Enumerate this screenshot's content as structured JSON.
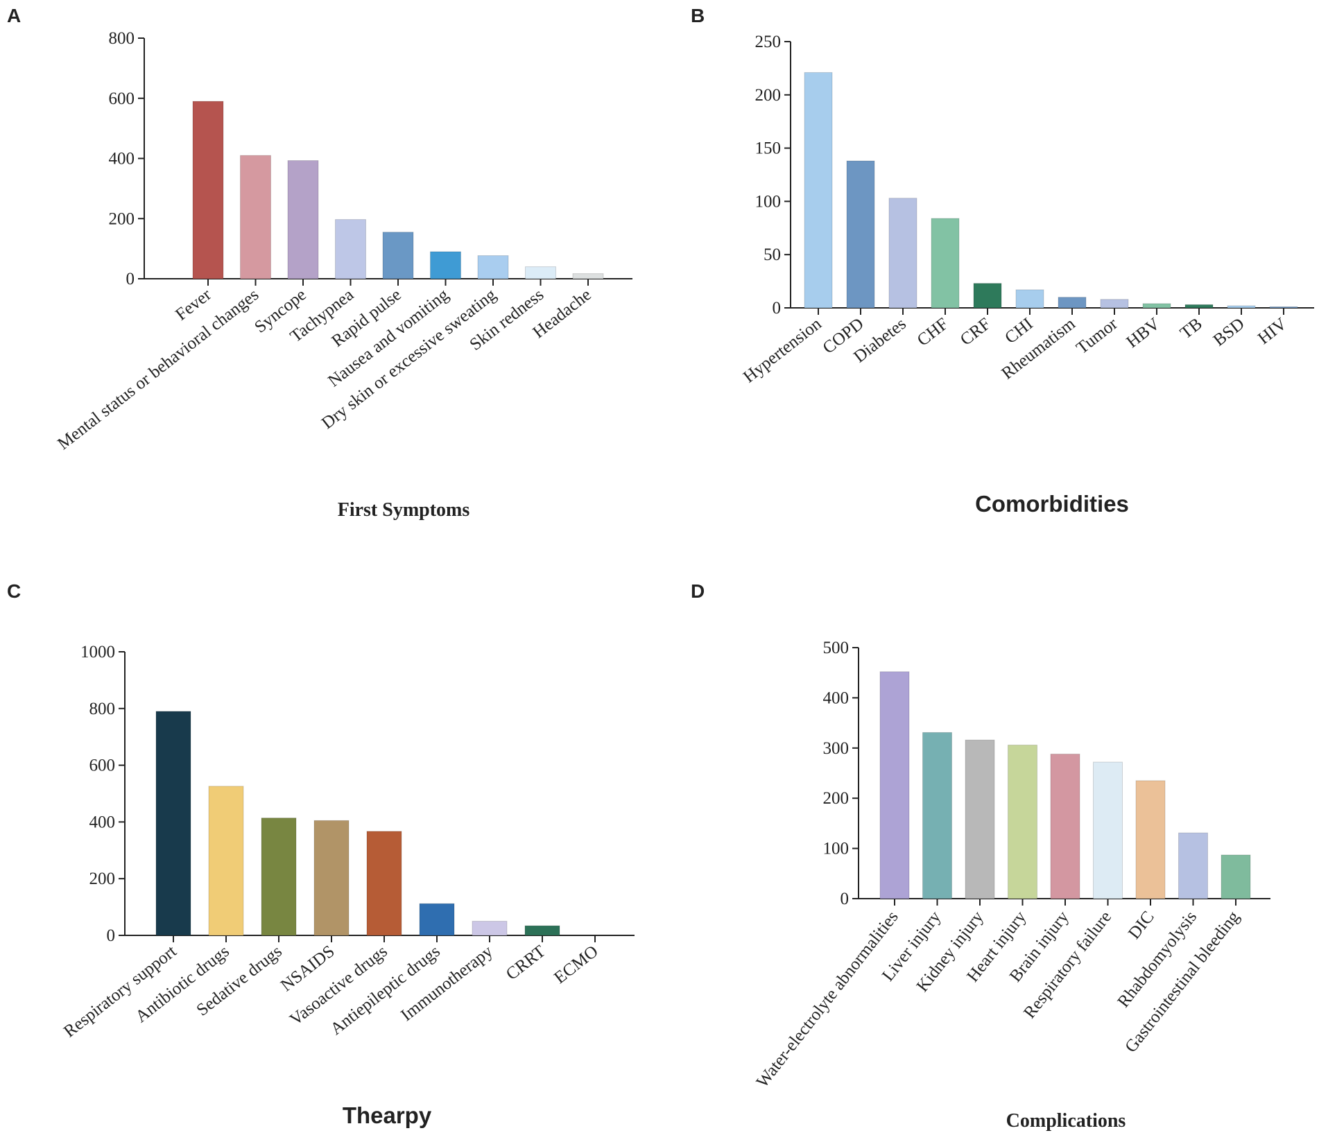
{
  "chart_data": [
    {
      "panel": "A",
      "type": "bar",
      "title": "",
      "xlabel": "First Symptoms",
      "ylabel": "",
      "ylim": [
        0,
        800
      ],
      "yticks": [
        "0",
        "200",
        "400",
        "600",
        "800"
      ],
      "categories": [
        "Fever",
        "Mental status or behavioral changes",
        "Syncope",
        "Tachypnea",
        "Rapid pulse",
        "Nausea and vomiting",
        "Dry skin or excessive sweating",
        "Skin redness",
        "Headache"
      ],
      "values": [
        590,
        410,
        393,
        197,
        155,
        90,
        77,
        40,
        17
      ],
      "colors": [
        "#b5544f",
        "#d599a0",
        "#b4a2c8",
        "#bec7e7",
        "#6a98c5",
        "#3f9bd4",
        "#a9cdef",
        "#dcecf7",
        "#dde0e0"
      ],
      "grid": false
    },
    {
      "panel": "B",
      "type": "bar",
      "title": "",
      "xlabel": "Comorbidities",
      "ylabel": "",
      "ylim": [
        0,
        250
      ],
      "yticks": [
        "0",
        "50",
        "100",
        "150",
        "200",
        "250"
      ],
      "categories": [
        "Hypertension",
        "COPD",
        "Diabetes",
        "CHF",
        "CRF",
        "CHI",
        "Rheumatism",
        "Tumor",
        "HBV",
        "TB",
        "BSD",
        "HIV"
      ],
      "values": [
        221,
        138,
        103,
        84,
        23,
        17,
        10,
        8,
        4,
        3,
        2,
        1
      ],
      "colors": [
        "#a7cded",
        "#6d96c2",
        "#b6c1e2",
        "#82c2a4",
        "#2e7a5b",
        "#a7cded",
        "#6d96c2",
        "#b6c1e2",
        "#82c2a4",
        "#2e7a5b",
        "#a7cded",
        "#6d96c2"
      ],
      "grid": false
    },
    {
      "panel": "C",
      "type": "bar",
      "title": "",
      "xlabel": "Thearpy",
      "ylabel": "",
      "ylim": [
        0,
        1000
      ],
      "yticks": [
        "0",
        "200",
        "400",
        "600",
        "800",
        "1000"
      ],
      "categories": [
        "Respiratory support",
        "Antibiotic drugs",
        "Sedative drugs",
        "NSAIDS",
        "Vasoactive drugs",
        "Antiepileptic drugs",
        "Immunotherapy",
        "CRRT",
        "ECMO"
      ],
      "values": [
        790,
        526,
        414,
        405,
        367,
        112,
        50,
        34,
        0
      ],
      "colors": [
        "#183a4c",
        "#f0cc76",
        "#788641",
        "#b19467",
        "#b65c36",
        "#2f6eb0",
        "#ccc7e6",
        "#2c7157",
        "#cccccc"
      ],
      "grid": false
    },
    {
      "panel": "D",
      "type": "bar",
      "title": "",
      "xlabel": "Complications",
      "ylabel": "",
      "ylim": [
        0,
        500
      ],
      "yticks": [
        "0",
        "100",
        "200",
        "300",
        "400",
        "500"
      ],
      "categories": [
        "Water-electrolyte abnormalities",
        "Liver injury",
        "Kidney injury",
        "Heart injury",
        "Brain injury",
        "Respiratory failure",
        "DIC",
        "Rhabdomyolysis",
        "Gastrointestinal bleeding"
      ],
      "values": [
        452,
        331,
        316,
        306,
        288,
        272,
        235,
        131,
        87
      ],
      "colors": [
        "#ada3d5",
        "#76b0b2",
        "#b8b8b8",
        "#c6d69a",
        "#d397a1",
        "#ddebf4",
        "#ebc198",
        "#b6c1e2",
        "#7fbb9d"
      ],
      "grid": false
    }
  ]
}
